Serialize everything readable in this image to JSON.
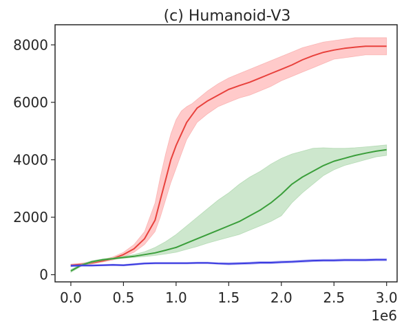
{
  "chart_data": {
    "type": "line",
    "title": "(c) Humanoid-V3",
    "xlabel": "",
    "ylabel": "",
    "x_offset_label": "1e6",
    "xlim": [
      -0.15,
      3.1
    ],
    "ylim": [
      -250,
      8700
    ],
    "x_ticks": [
      0.0,
      0.5,
      1.0,
      1.5,
      2.0,
      2.5,
      3.0
    ],
    "x_tick_labels": [
      "0.0",
      "0.5",
      "1.0",
      "1.5",
      "2.0",
      "2.5",
      "3.0"
    ],
    "y_ticks": [
      0,
      2000,
      4000,
      6000,
      8000
    ],
    "y_tick_labels": [
      "0",
      "2000",
      "4000",
      "6000",
      "8000"
    ],
    "grid": false,
    "legend": "none",
    "series": [
      {
        "color": "#e8413c",
        "fill_color": "#ffb3b3",
        "x": [
          0.0,
          0.1,
          0.2,
          0.3,
          0.4,
          0.5,
          0.6,
          0.7,
          0.8,
          0.85,
          0.9,
          0.95,
          1.0,
          1.05,
          1.1,
          1.15,
          1.2,
          1.3,
          1.4,
          1.5,
          1.6,
          1.7,
          1.8,
          1.9,
          2.0,
          2.1,
          2.2,
          2.3,
          2.4,
          2.5,
          2.6,
          2.7,
          2.8,
          2.9,
          3.0
        ],
        "mean": [
          330,
          360,
          410,
          480,
          560,
          700,
          900,
          1250,
          1900,
          2600,
          3300,
          4000,
          4500,
          4900,
          5300,
          5550,
          5800,
          6050,
          6250,
          6450,
          6580,
          6700,
          6850,
          7000,
          7150,
          7300,
          7480,
          7620,
          7740,
          7820,
          7880,
          7920,
          7950,
          7950,
          7950
        ],
        "lower": [
          290,
          320,
          370,
          440,
          510,
          620,
          780,
          1050,
          1500,
          2000,
          2600,
          3200,
          3700,
          4200,
          4700,
          5000,
          5300,
          5600,
          5850,
          6000,
          6150,
          6250,
          6400,
          6550,
          6750,
          6900,
          7050,
          7200,
          7350,
          7500,
          7550,
          7600,
          7650,
          7650,
          7650
        ],
        "upper": [
          370,
          400,
          450,
          520,
          620,
          780,
          1050,
          1500,
          2500,
          3400,
          4200,
          4900,
          5400,
          5700,
          5850,
          5950,
          6100,
          6400,
          6650,
          6850,
          7000,
          7150,
          7300,
          7450,
          7600,
          7750,
          7900,
          8000,
          8100,
          8150,
          8200,
          8250,
          8250,
          8250,
          8250
        ]
      },
      {
        "color": "#3a9e3a",
        "fill_color": "#b8ddb8",
        "x": [
          0.0,
          0.1,
          0.2,
          0.3,
          0.4,
          0.5,
          0.6,
          0.7,
          0.8,
          0.9,
          1.0,
          1.1,
          1.2,
          1.3,
          1.4,
          1.5,
          1.6,
          1.7,
          1.8,
          1.9,
          2.0,
          2.1,
          2.2,
          2.3,
          2.4,
          2.5,
          2.6,
          2.7,
          2.8,
          2.9,
          3.0
        ],
        "mean": [
          130,
          330,
          450,
          520,
          560,
          600,
          640,
          700,
          760,
          850,
          950,
          1100,
          1250,
          1400,
          1550,
          1700,
          1850,
          2050,
          2250,
          2500,
          2800,
          3150,
          3400,
          3600,
          3800,
          3950,
          4050,
          4150,
          4230,
          4300,
          4350
        ],
        "lower": [
          80,
          290,
          410,
          490,
          530,
          570,
          600,
          630,
          670,
          720,
          780,
          880,
          980,
          1100,
          1200,
          1300,
          1400,
          1550,
          1700,
          1850,
          2050,
          2500,
          2850,
          3150,
          3450,
          3650,
          3800,
          3900,
          4000,
          4100,
          4150
        ],
        "upper": [
          180,
          370,
          490,
          550,
          590,
          640,
          700,
          800,
          950,
          1150,
          1400,
          1700,
          2000,
          2300,
          2600,
          2850,
          3150,
          3400,
          3600,
          3850,
          4050,
          4200,
          4300,
          4400,
          4420,
          4400,
          4400,
          4420,
          4450,
          4480,
          4520
        ]
      },
      {
        "color": "#3a3ae0",
        "fill_color": "#aaaaf5",
        "x": [
          0.0,
          0.1,
          0.2,
          0.3,
          0.4,
          0.5,
          0.6,
          0.7,
          0.8,
          0.9,
          1.0,
          1.1,
          1.2,
          1.3,
          1.4,
          1.5,
          1.6,
          1.7,
          1.8,
          1.9,
          2.0,
          2.1,
          2.2,
          2.3,
          2.4,
          2.5,
          2.6,
          2.7,
          2.8,
          2.9,
          3.0
        ],
        "mean": [
          310,
          320,
          320,
          330,
          340,
          330,
          360,
          390,
          400,
          400,
          400,
          400,
          410,
          410,
          390,
          380,
          390,
          400,
          420,
          420,
          440,
          450,
          470,
          490,
          500,
          500,
          510,
          510,
          510,
          520,
          520
        ],
        "lower": [
          280,
          290,
          290,
          300,
          310,
          300,
          330,
          360,
          370,
          370,
          370,
          370,
          380,
          380,
          360,
          340,
          350,
          360,
          380,
          380,
          400,
          410,
          430,
          450,
          460,
          460,
          470,
          470,
          470,
          480,
          480
        ],
        "upper": [
          340,
          350,
          350,
          360,
          370,
          360,
          390,
          420,
          430,
          430,
          430,
          430,
          440,
          440,
          420,
          420,
          430,
          440,
          460,
          460,
          480,
          490,
          510,
          530,
          540,
          540,
          550,
          550,
          550,
          560,
          560
        ]
      }
    ]
  }
}
